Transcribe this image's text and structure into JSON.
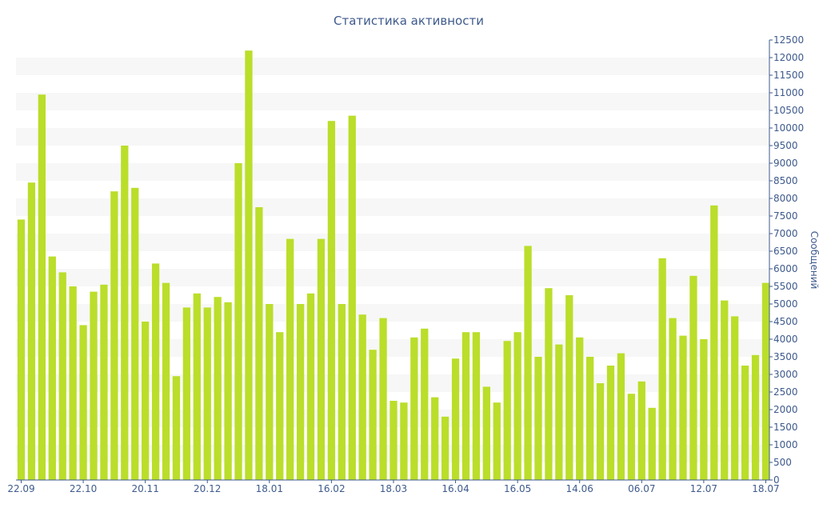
{
  "chart_data": {
    "type": "bar",
    "title": "Статистика активности",
    "ylabel": "Сообщений",
    "xlabel": "",
    "ylim": [
      0,
      12500
    ],
    "y_ticks": [
      0,
      500,
      1000,
      1500,
      2000,
      2500,
      3000,
      3500,
      4000,
      4500,
      5000,
      5500,
      6000,
      6500,
      7000,
      7500,
      8000,
      8500,
      9000,
      9500,
      10000,
      10500,
      11000,
      11500,
      12000,
      12500
    ],
    "x_ticks": [
      {
        "label": "22.09",
        "index": 0
      },
      {
        "label": "22.10",
        "index": 6
      },
      {
        "label": "20.11",
        "index": 12
      },
      {
        "label": "20.12",
        "index": 18
      },
      {
        "label": "18.01",
        "index": 24
      },
      {
        "label": "16.02",
        "index": 30
      },
      {
        "label": "18.03",
        "index": 36
      },
      {
        "label": "16.04",
        "index": 42
      },
      {
        "label": "16.05",
        "index": 48
      },
      {
        "label": "14.06",
        "index": 54
      },
      {
        "label": "06.07",
        "index": 60
      },
      {
        "label": "12.07",
        "index": 66
      },
      {
        "label": "18.07",
        "index": 72
      }
    ],
    "grid": "alternating horizontal bands",
    "bar_color": "#bade2a",
    "values": [
      7400,
      8450,
      10950,
      6350,
      5900,
      5500,
      4400,
      5350,
      5550,
      8200,
      9500,
      8300,
      4500,
      6150,
      5600,
      2950,
      4900,
      5300,
      4900,
      5200,
      5050,
      9000,
      12200,
      7750,
      5000,
      4200,
      6850,
      5000,
      5300,
      6850,
      10200,
      5000,
      10350,
      4700,
      3700,
      4600,
      2250,
      2200,
      4050,
      4300,
      2350,
      1800,
      3450,
      4200,
      4200,
      2650,
      2200,
      3950,
      4200,
      6650,
      3500,
      5450,
      3850,
      5250,
      4050,
      3500,
      2750,
      3250,
      3600,
      2450,
      2800,
      2050,
      6300,
      4600,
      4100,
      5800,
      4000,
      7800,
      5100,
      4650,
      3250,
      3550,
      5600
    ]
  }
}
